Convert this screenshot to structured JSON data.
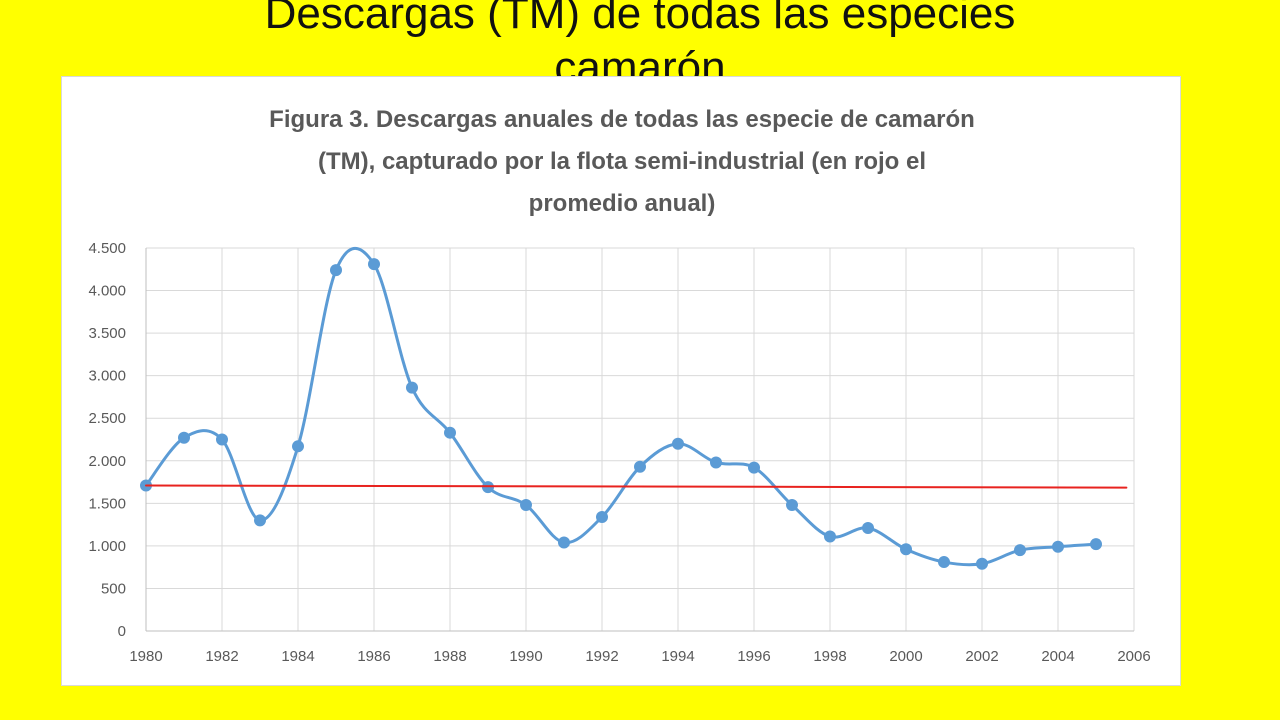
{
  "slide": {
    "title_line1": "Descargas (TM) de todas las especies",
    "title_line2": "camarón"
  },
  "chart_data": {
    "type": "line",
    "title_lines": [
      "Figura 3. Descargas anuales de todas las especie de camarón",
      "(TM), capturado por la flota semi-industrial (en rojo el",
      "promedio anual)"
    ],
    "xlabel": "",
    "ylabel": "",
    "xlim": [
      1980,
      2006
    ],
    "ylim": [
      0,
      4500
    ],
    "x_ticks": [
      1980,
      1982,
      1984,
      1986,
      1988,
      1990,
      1992,
      1994,
      1996,
      1998,
      2000,
      2002,
      2004,
      2006
    ],
    "y_ticks": [
      0,
      500,
      1000,
      1500,
      2000,
      2500,
      3000,
      3500,
      4000,
      4500
    ],
    "y_tick_labels": [
      "0",
      "500",
      "1.000",
      "1.500",
      "2.000",
      "2.500",
      "3.000",
      "3.500",
      "4.000",
      "4.500"
    ],
    "grid": true,
    "series": [
      {
        "color": "#5b9bd5",
        "smooth": true,
        "markers": true,
        "x": [
          1980,
          1981,
          1982,
          1983,
          1984,
          1985,
          1986,
          1987,
          1988,
          1989,
          1990,
          1991,
          1992,
          1993,
          1994,
          1995,
          1996,
          1997,
          1998,
          1999,
          2000,
          2001,
          2002,
          2003,
          2004,
          2005
        ],
        "values": [
          1710,
          2270,
          2250,
          1300,
          2170,
          4240,
          4310,
          2860,
          2330,
          1690,
          1480,
          1040,
          1340,
          1930,
          2200,
          1980,
          1920,
          1480,
          1110,
          1210,
          960,
          810,
          790,
          950,
          990,
          1020
        ]
      },
      {
        "color": "#e8231f",
        "smooth": false,
        "markers": false,
        "x": [
          1980,
          2005.8
        ],
        "values": [
          1710,
          1685
        ]
      }
    ]
  }
}
